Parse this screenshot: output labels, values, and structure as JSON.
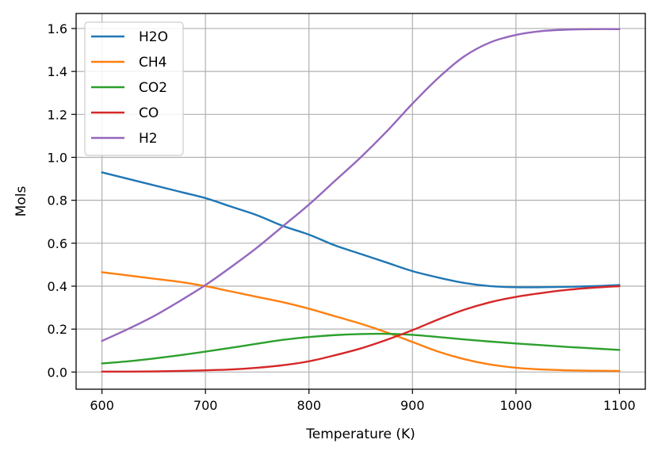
{
  "chart_data": {
    "type": "line",
    "title": "",
    "xlabel": "Temperature (K)",
    "ylabel": "Mols",
    "xlim": [
      575,
      1125
    ],
    "ylim": [
      -0.08,
      1.67
    ],
    "xticks": [
      600,
      700,
      800,
      900,
      1000,
      1100
    ],
    "yticks": [
      0.0,
      0.2,
      0.4,
      0.6,
      0.8,
      1.0,
      1.2,
      1.4,
      1.6
    ],
    "xtick_labels": [
      "600",
      "700",
      "800",
      "900",
      "1000",
      "1100"
    ],
    "ytick_labels": [
      "0.0",
      "0.2",
      "0.4",
      "0.6",
      "0.8",
      "1.0",
      "1.2",
      "1.4",
      "1.6"
    ],
    "grid": true,
    "legend_position": "top-left",
    "x": [
      600,
      625,
      650,
      675,
      700,
      725,
      750,
      775,
      800,
      825,
      850,
      875,
      900,
      925,
      950,
      975,
      1000,
      1025,
      1050,
      1075,
      1100
    ],
    "series": [
      {
        "name": "H2O",
        "color": "#1f77b4",
        "values": [
          0.93,
          0.9,
          0.87,
          0.84,
          0.81,
          0.77,
          0.73,
          0.68,
          0.64,
          0.59,
          0.55,
          0.51,
          0.47,
          0.44,
          0.415,
          0.4,
          0.395,
          0.395,
          0.397,
          0.4,
          0.405
        ]
      },
      {
        "name": "CH4",
        "color": "#ff7f0e",
        "values": [
          0.465,
          0.45,
          0.435,
          0.42,
          0.4,
          0.375,
          0.35,
          0.325,
          0.295,
          0.26,
          0.225,
          0.185,
          0.14,
          0.095,
          0.06,
          0.035,
          0.02,
          0.012,
          0.008,
          0.006,
          0.005
        ]
      },
      {
        "name": "CO2",
        "color": "#2ca02c",
        "values": [
          0.04,
          0.05,
          0.063,
          0.078,
          0.095,
          0.113,
          0.132,
          0.15,
          0.163,
          0.172,
          0.177,
          0.178,
          0.173,
          0.163,
          0.152,
          0.142,
          0.133,
          0.125,
          0.117,
          0.11,
          0.103
        ]
      },
      {
        "name": "CO",
        "color": "#d62728",
        "values": [
          0.002,
          0.002,
          0.003,
          0.005,
          0.008,
          0.012,
          0.02,
          0.032,
          0.05,
          0.078,
          0.11,
          0.15,
          0.195,
          0.245,
          0.29,
          0.325,
          0.35,
          0.368,
          0.383,
          0.393,
          0.4
        ]
      },
      {
        "name": "H2",
        "color": "#9467bd",
        "values": [
          0.145,
          0.2,
          0.26,
          0.33,
          0.405,
          0.49,
          0.58,
          0.68,
          0.78,
          0.89,
          1.0,
          1.12,
          1.25,
          1.37,
          1.47,
          1.535,
          1.57,
          1.588,
          1.595,
          1.597,
          1.597
        ]
      }
    ]
  }
}
